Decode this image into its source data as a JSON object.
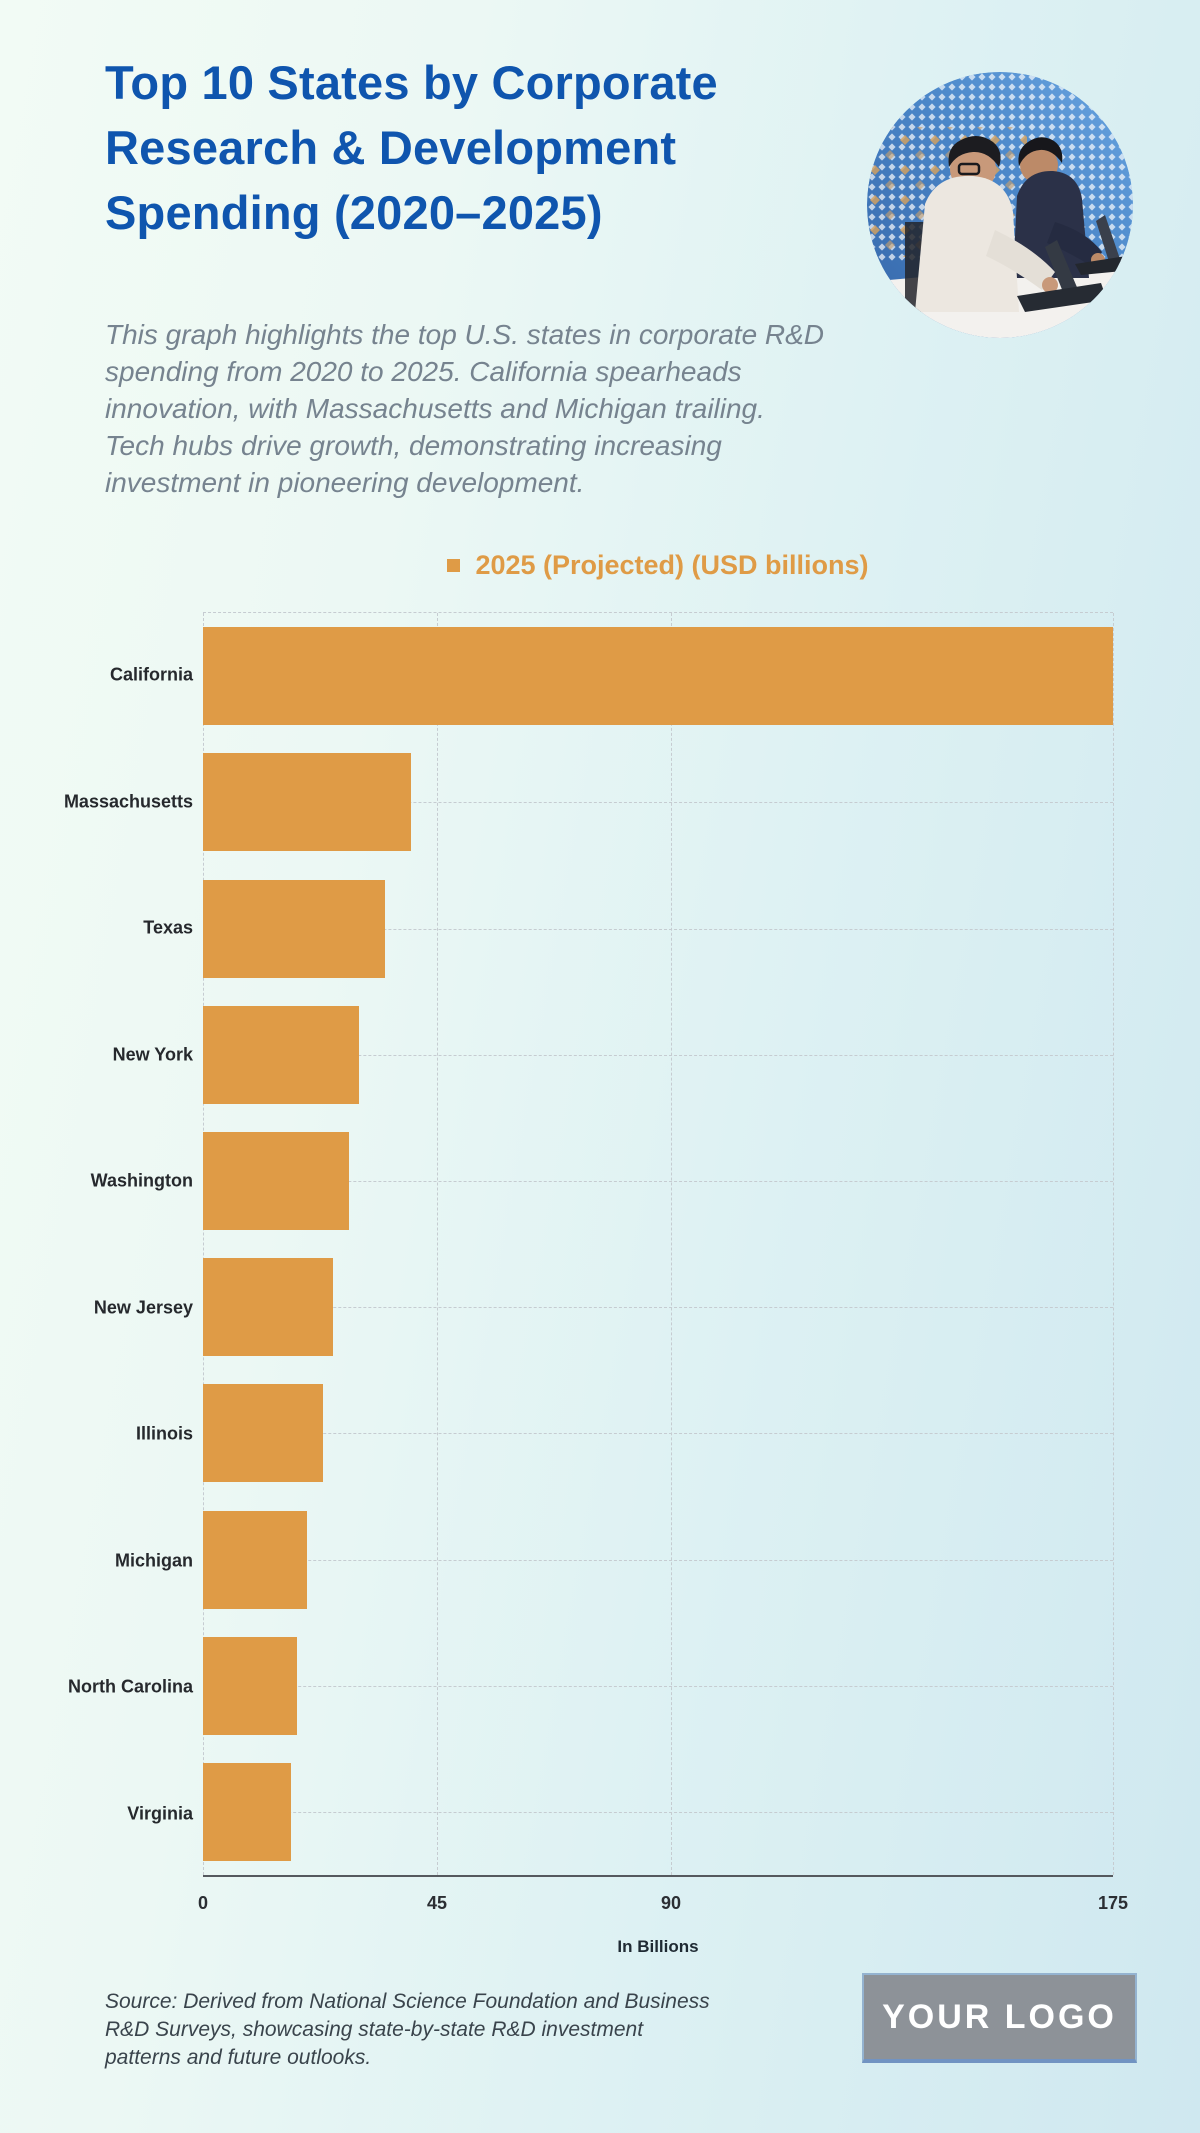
{
  "header": {
    "title": "Top 10 States by Corporate Research & Development Spending (2020–2025)",
    "title_lines": [
      "Top 10 States by Corporate",
      "Research & Development",
      "Spending (2020–2025)"
    ],
    "title_color": "#0f55ae",
    "description": "This graph highlights the top U.S. states in corporate R&D spending from 2020 to 2025. California spearheads innovation, with Massachusetts and Michigan trailing. Tech hubs drive growth, demonstrating increasing investment in pioneering development.",
    "description_lines": [
      "This graph highlights the top U.S. states in corporate R&D",
      "spending from 2020 to 2025. California spearheads",
      "innovation, with Massachusetts and Michigan trailing.",
      "Tech hubs drive growth, demonstrating increasing",
      "investment in pioneering development."
    ],
    "hero_image": "two-people-working-on-laptops-against-blue-halftone-dot-wall"
  },
  "legend": {
    "label": "2025 (Projected) (USD billions)",
    "swatch_color": "#df9b46",
    "position": "top-center"
  },
  "chart_data": {
    "type": "bar",
    "orientation": "horizontal",
    "series_name": "2025 (Projected) (USD billions)",
    "categories": [
      "California",
      "Massachusetts",
      "Texas",
      "New York",
      "Washington",
      "New Jersey",
      "Illinois",
      "Michigan",
      "North Carolina",
      "Virginia"
    ],
    "values": [
      175,
      40,
      35,
      30,
      28,
      25,
      23,
      20,
      18,
      17
    ],
    "xlabel": "In Billions",
    "xlim": [
      0,
      175
    ],
    "xticks": [
      0,
      45,
      90,
      175
    ],
    "grid": "dashed",
    "bar_color": "#df9b46"
  },
  "footer": {
    "source_note": "Source: Derived from National Science Foundation and Business R&D Surveys, showcasing state-by-state R&D investment patterns and future outlooks.",
    "source_lines": [
      "Source: Derived from National Science Foundation and Business",
      "R&D Surveys, showcasing state-by-state R&D investment",
      "patterns and future outlooks."
    ],
    "logo_text": "YOUR LOGO",
    "logo_bg_color": "#8d9298"
  }
}
